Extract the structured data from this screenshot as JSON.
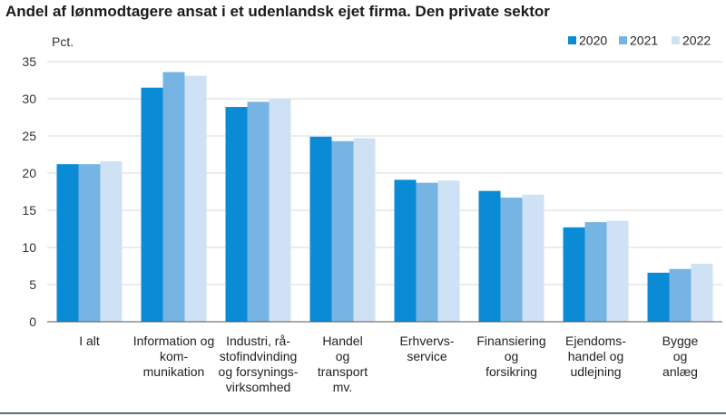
{
  "chart_data": {
    "type": "bar",
    "title": "Andel af lønmodtagere ansat i et udenlandsk ejet firma. Den private sektor",
    "ylabel": "Pct.",
    "xlabel": "",
    "ylim": [
      0,
      35
    ],
    "yticks": [
      0,
      5,
      10,
      15,
      20,
      25,
      30,
      35
    ],
    "grid": true,
    "legend_position": "top-right",
    "categories": [
      [
        "I alt"
      ],
      [
        "Information og",
        "kom-",
        "munikation"
      ],
      [
        "Industri, rå-",
        "stofindvinding",
        "og forsynings-",
        "virksomhed"
      ],
      [
        "Handel",
        "og",
        "transport",
        "mv."
      ],
      [
        "Erhvervs-",
        "service"
      ],
      [
        "Finansiering",
        "og",
        "forsikring"
      ],
      [
        "Ejendoms-",
        "handel og",
        "udlejning"
      ],
      [
        "Bygge",
        "og",
        "anlæg"
      ]
    ],
    "series": [
      {
        "name": "2020",
        "color": "#0a8bd6",
        "values": [
          21.2,
          31.5,
          28.9,
          24.9,
          19.1,
          17.6,
          12.7,
          6.6
        ]
      },
      {
        "name": "2021",
        "color": "#76b5e3",
        "values": [
          21.2,
          33.6,
          29.6,
          24.3,
          18.7,
          16.7,
          13.4,
          7.1
        ]
      },
      {
        "name": "2022",
        "color": "#cfe2f5",
        "values": [
          21.6,
          33.1,
          30.0,
          24.7,
          19.0,
          17.1,
          13.6,
          7.8
        ]
      }
    ]
  }
}
